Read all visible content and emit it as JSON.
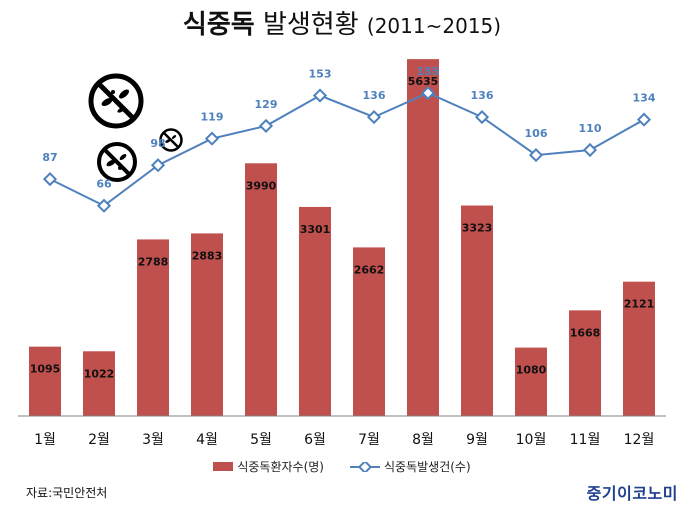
{
  "title": {
    "bold": "식중독",
    "light": "발생현황",
    "years": "(2011~2015)"
  },
  "chart_data": {
    "type": "bar",
    "categories": [
      "1월",
      "2월",
      "3월",
      "4월",
      "5월",
      "6월",
      "7월",
      "8월",
      "9월",
      "10월",
      "11월",
      "12월"
    ],
    "series": [
      {
        "name": "식중독환자수(명)",
        "type": "bar",
        "color": "#c0504d",
        "values": [
          1095,
          1022,
          2788,
          2883,
          3990,
          3301,
          2662,
          5635,
          3323,
          1080,
          1668,
          2121
        ]
      },
      {
        "name": "식중독발생건(수)",
        "type": "line",
        "color": "#4f81bd",
        "values": [
          87,
          66,
          98,
          119,
          129,
          153,
          136,
          155,
          136,
          106,
          110,
          134
        ]
      }
    ],
    "ylim_bars": [
      0,
      6000
    ],
    "ylim_line": [
      -100,
      200
    ],
    "grid": false,
    "legend": "bottom"
  },
  "legend": {
    "bar_label": "식중독환자수(명)",
    "line_label": "식중독발생건(수)"
  },
  "source": "자료:국민안전처",
  "brand": "중기이코노미",
  "icons": [
    "no-bacteria-icon",
    "no-bacteria-icon",
    "no-bacteria-icon"
  ]
}
